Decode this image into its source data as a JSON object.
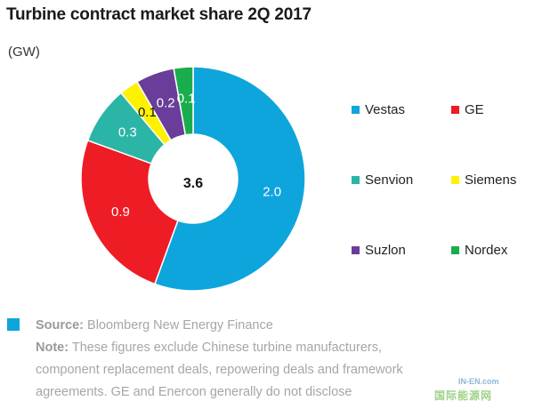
{
  "title": "Turbine contract market share 2Q 2017",
  "unit_label": "(GW)",
  "chart_data": {
    "type": "pie",
    "title": "Turbine contract market share 2Q 2017",
    "unit": "(GW)",
    "center_label": "3.6",
    "legend_placement": "right",
    "categories": [
      "Vestas",
      "GE",
      "Senvion",
      "Siemens",
      "Suzlon",
      "Nordex"
    ],
    "values": [
      2.0,
      0.9,
      0.3,
      0.1,
      0.2,
      0.1
    ],
    "value_labels": [
      "2.0",
      "0.9",
      "0.3",
      "0.1",
      "0.2",
      "0.1"
    ],
    "colors": [
      "#0ea5dc",
      "#ee1c24",
      "#2bb5a6",
      "#fff200",
      "#6a3d9a",
      "#1aad4e"
    ]
  },
  "legend": {
    "items": [
      {
        "label": "Vestas",
        "color": "#0ea5dc"
      },
      {
        "label": "GE",
        "color": "#ee1c24"
      },
      {
        "label": "Senvion",
        "color": "#2bb5a6"
      },
      {
        "label": "Siemens",
        "color": "#fff200"
      },
      {
        "label": "Suzlon",
        "color": "#6a3d9a"
      },
      {
        "label": "Nordex",
        "color": "#1aad4e"
      }
    ]
  },
  "footer": {
    "swatch_color": "#0ea5dc",
    "source_label": "Source:",
    "source_text": "Bloomberg New Energy Finance",
    "note_label": "Note:",
    "note_lines": [
      "These figures exclude Chinese turbine manufacturers,",
      "component replacement deals, repowering deals and framework",
      "agreements. GE and Enercon generally do not disclose"
    ]
  },
  "watermark": {
    "domain": "IN-EN.com",
    "text": "国际能源网"
  }
}
